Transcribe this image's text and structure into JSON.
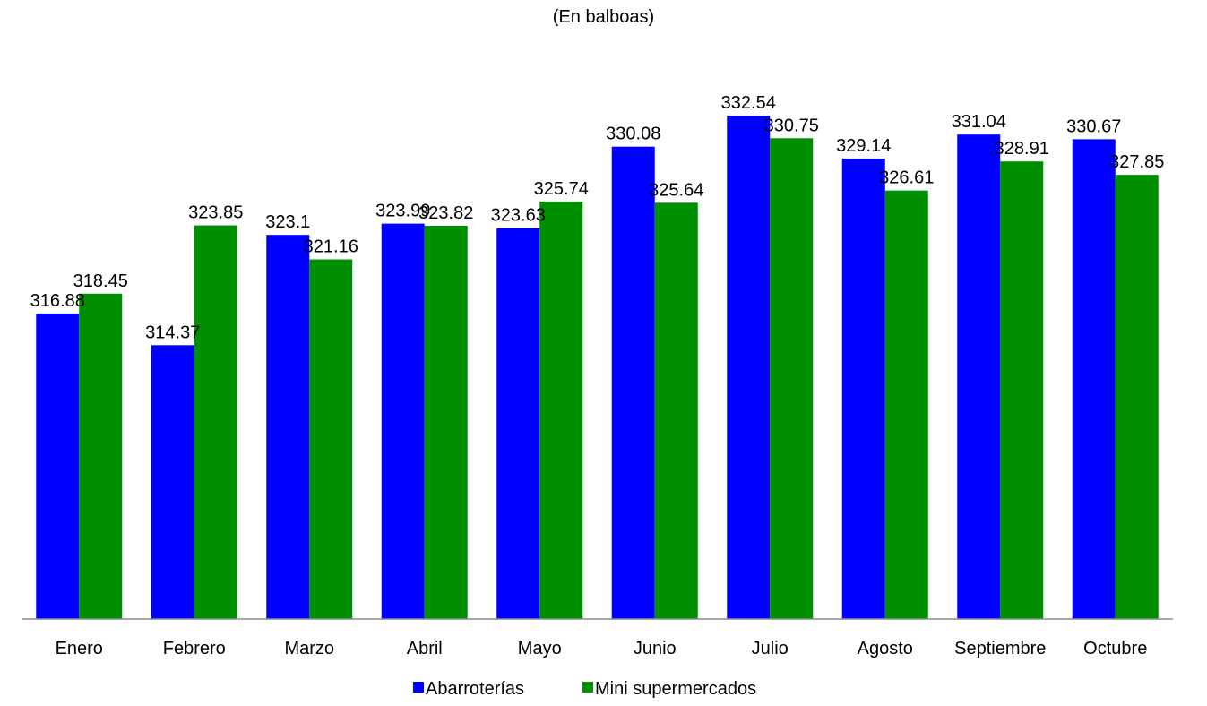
{
  "chart_data": {
    "type": "bar",
    "subtitle": "(En balboas)",
    "categories": [
      "Enero",
      "Febrero",
      "Marzo",
      "Abril",
      "Mayo",
      "Junio",
      "Julio",
      "Agosto",
      "Septiembre",
      "Octubre"
    ],
    "series": [
      {
        "name": "Abarroterías",
        "color": "#0000FF",
        "values": [
          316.88,
          314.37,
          323.1,
          323.99,
          323.63,
          330.08,
          332.54,
          329.14,
          331.04,
          330.67
        ],
        "labels": [
          "316.88",
          "314.37",
          "323.1",
          "323.99",
          "323.63",
          "330.08",
          "332.54",
          "329.14",
          "331.04",
          "330.67"
        ]
      },
      {
        "name": "Mini supermercados",
        "color": "#008F00",
        "values": [
          318.45,
          323.85,
          321.16,
          323.82,
          325.74,
          325.64,
          330.75,
          326.61,
          328.91,
          327.85
        ],
        "labels": [
          "318.45",
          "323.85",
          "321.16",
          "323.82",
          "325.74",
          "325.64",
          "330.75",
          "326.61",
          "328.91",
          "327.85"
        ]
      }
    ],
    "ylim": [
      292.7,
      332.54
    ],
    "grid": false,
    "legend": "bottom-center"
  }
}
